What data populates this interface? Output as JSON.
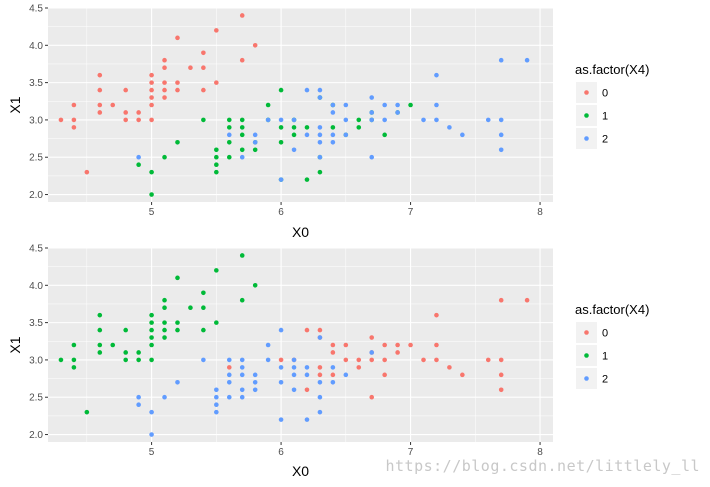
{
  "watermark": "https://blog.csdn.net/littlely_ll",
  "colors": {
    "0": "#F8766D",
    "1": "#00BA38",
    "2": "#619CFF",
    "panel": "#EBEBEB",
    "grid": "#FFFFFF"
  },
  "chart_data": [
    {
      "type": "scatter",
      "xlabel": "X0",
      "ylabel": "X1",
      "xlim": [
        4.2,
        8.1
      ],
      "ylim": [
        1.9,
        4.5
      ],
      "xticks": [
        "5",
        "6",
        "7",
        "8"
      ],
      "yticks": [
        "2.0",
        "2.5",
        "3.0",
        "3.5",
        "4.0",
        "4.5"
      ],
      "grid": true,
      "legend": {
        "title": "as.factor(X4)",
        "position": "right",
        "entries": [
          "0",
          "1",
          "2"
        ]
      },
      "series": [
        {
          "name": "0",
          "color": "#F8766D",
          "points": [
            [
              4.3,
              3.0
            ],
            [
              4.4,
              3.2
            ],
            [
              4.4,
              3.0
            ],
            [
              4.4,
              2.9
            ],
            [
              4.5,
              2.3
            ],
            [
              4.6,
              3.6
            ],
            [
              4.6,
              3.4
            ],
            [
              4.6,
              3.2
            ],
            [
              4.6,
              3.1
            ],
            [
              4.7,
              3.2
            ],
            [
              4.8,
              3.4
            ],
            [
              4.8,
              3.1
            ],
            [
              4.8,
              3.0
            ],
            [
              4.9,
              3.1
            ],
            [
              4.9,
              3.0
            ],
            [
              5.0,
              3.6
            ],
            [
              5.0,
              3.5
            ],
            [
              5.0,
              3.4
            ],
            [
              5.0,
              3.3
            ],
            [
              5.0,
              3.2
            ],
            [
              5.0,
              3.0
            ],
            [
              5.1,
              3.8
            ],
            [
              5.1,
              3.7
            ],
            [
              5.1,
              3.5
            ],
            [
              5.1,
              3.4
            ],
            [
              5.1,
              3.3
            ],
            [
              5.2,
              4.1
            ],
            [
              5.2,
              3.5
            ],
            [
              5.2,
              3.4
            ],
            [
              5.3,
              3.7
            ],
            [
              5.4,
              3.9
            ],
            [
              5.4,
              3.7
            ],
            [
              5.4,
              3.4
            ],
            [
              5.5,
              4.2
            ],
            [
              5.5,
              3.5
            ],
            [
              5.7,
              4.4
            ],
            [
              5.7,
              3.8
            ],
            [
              5.8,
              4.0
            ]
          ]
        },
        {
          "name": "1",
          "color": "#00BA38",
          "points": [
            [
              4.9,
              2.4
            ],
            [
              5.0,
              2.3
            ],
            [
              5.0,
              2.0
            ],
            [
              5.1,
              2.5
            ],
            [
              5.2,
              2.7
            ],
            [
              5.4,
              3.0
            ],
            [
              5.5,
              2.6
            ],
            [
              5.5,
              2.5
            ],
            [
              5.5,
              2.4
            ],
            [
              5.5,
              2.3
            ],
            [
              5.6,
              3.0
            ],
            [
              5.6,
              2.9
            ],
            [
              5.6,
              2.7
            ],
            [
              5.6,
              2.5
            ],
            [
              5.7,
              3.0
            ],
            [
              5.7,
              2.9
            ],
            [
              5.7,
              2.8
            ],
            [
              5.7,
              2.6
            ],
            [
              5.8,
              2.7
            ],
            [
              5.8,
              2.6
            ],
            [
              5.9,
              3.2
            ],
            [
              5.9,
              3.0
            ],
            [
              6.0,
              3.4
            ],
            [
              6.0,
              2.9
            ],
            [
              6.0,
              2.7
            ],
            [
              6.0,
              2.2
            ],
            [
              6.1,
              3.0
            ],
            [
              6.1,
              2.9
            ],
            [
              6.1,
              2.8
            ],
            [
              6.2,
              2.9
            ],
            [
              6.2,
              2.2
            ],
            [
              6.3,
              3.3
            ],
            [
              6.3,
              2.5
            ],
            [
              6.3,
              2.3
            ],
            [
              6.4,
              3.2
            ],
            [
              6.4,
              2.9
            ],
            [
              6.5,
              2.8
            ],
            [
              6.6,
              3.0
            ],
            [
              6.6,
              2.9
            ],
            [
              6.7,
              3.1
            ],
            [
              6.7,
              3.0
            ],
            [
              6.8,
              2.8
            ],
            [
              6.9,
              3.1
            ],
            [
              7.0,
              3.2
            ]
          ]
        },
        {
          "name": "2",
          "color": "#619CFF",
          "points": [
            [
              4.9,
              2.5
            ],
            [
              5.6,
              2.8
            ],
            [
              5.7,
              2.5
            ],
            [
              5.8,
              2.8
            ],
            [
              5.8,
              2.7
            ],
            [
              5.9,
              3.0
            ],
            [
              6.0,
              3.0
            ],
            [
              6.0,
              2.2
            ],
            [
              6.1,
              3.0
            ],
            [
              6.1,
              2.6
            ],
            [
              6.2,
              3.4
            ],
            [
              6.2,
              2.8
            ],
            [
              6.3,
              3.4
            ],
            [
              6.3,
              3.3
            ],
            [
              6.3,
              2.9
            ],
            [
              6.3,
              2.8
            ],
            [
              6.3,
              2.7
            ],
            [
              6.3,
              2.5
            ],
            [
              6.4,
              3.2
            ],
            [
              6.4,
              3.1
            ],
            [
              6.4,
              2.8
            ],
            [
              6.4,
              2.7
            ],
            [
              6.5,
              3.2
            ],
            [
              6.5,
              3.0
            ],
            [
              6.5,
              2.8
            ],
            [
              6.7,
              3.3
            ],
            [
              6.7,
              3.1
            ],
            [
              6.7,
              3.0
            ],
            [
              6.7,
              2.5
            ],
            [
              6.8,
              3.2
            ],
            [
              6.8,
              3.0
            ],
            [
              6.9,
              3.2
            ],
            [
              6.9,
              3.1
            ],
            [
              7.1,
              3.0
            ],
            [
              7.2,
              3.6
            ],
            [
              7.2,
              3.2
            ],
            [
              7.2,
              3.0
            ],
            [
              7.3,
              2.9
            ],
            [
              7.4,
              2.8
            ],
            [
              7.6,
              3.0
            ],
            [
              7.7,
              3.8
            ],
            [
              7.7,
              3.0
            ],
            [
              7.7,
              2.8
            ],
            [
              7.7,
              2.6
            ],
            [
              7.9,
              3.8
            ]
          ]
        }
      ]
    },
    {
      "type": "scatter",
      "xlabel": "X0",
      "ylabel": "X1",
      "xlim": [
        4.2,
        8.1
      ],
      "ylim": [
        1.9,
        4.5
      ],
      "xticks": [
        "5",
        "6",
        "7",
        "8"
      ],
      "yticks": [
        "2.0",
        "2.5",
        "3.0",
        "3.5",
        "4.0",
        "4.5"
      ],
      "grid": true,
      "legend": {
        "title": "as.factor(X4)",
        "position": "right",
        "entries": [
          "0",
          "1",
          "2"
        ]
      },
      "series": [
        {
          "name": "0",
          "color": "#F8766D",
          "points": [
            [
              5.6,
              2.9
            ],
            [
              6.0,
              3.0
            ],
            [
              6.1,
              3.0
            ],
            [
              6.2,
              3.4
            ],
            [
              6.3,
              3.4
            ],
            [
              6.3,
              3.3
            ],
            [
              6.3,
              2.9
            ],
            [
              6.3,
              2.8
            ],
            [
              6.4,
              3.2
            ],
            [
              6.4,
              3.1
            ],
            [
              6.4,
              2.8
            ],
            [
              6.5,
              3.2
            ],
            [
              6.5,
              3.0
            ],
            [
              6.6,
              3.0
            ],
            [
              6.6,
              2.9
            ],
            [
              6.7,
              3.3
            ],
            [
              6.7,
              3.1
            ],
            [
              6.7,
              3.0
            ],
            [
              6.7,
              2.5
            ],
            [
              6.8,
              3.2
            ],
            [
              6.8,
              3.0
            ],
            [
              6.8,
              2.8
            ],
            [
              6.9,
              3.2
            ],
            [
              6.9,
              3.1
            ],
            [
              7.0,
              3.2
            ],
            [
              7.1,
              3.0
            ],
            [
              7.2,
              3.6
            ],
            [
              7.2,
              3.2
            ],
            [
              7.2,
              3.0
            ],
            [
              7.3,
              2.9
            ],
            [
              7.4,
              2.8
            ],
            [
              7.6,
              3.0
            ],
            [
              7.7,
              3.8
            ],
            [
              7.7,
              3.0
            ],
            [
              7.7,
              2.8
            ],
            [
              7.7,
              2.6
            ],
            [
              7.9,
              3.8
            ],
            [
              6.2,
              2.6
            ]
          ]
        },
        {
          "name": "1",
          "color": "#00BA38",
          "points": [
            [
              4.3,
              3.0
            ],
            [
              4.4,
              3.2
            ],
            [
              4.4,
              3.0
            ],
            [
              4.4,
              2.9
            ],
            [
              4.5,
              2.3
            ],
            [
              4.6,
              3.6
            ],
            [
              4.6,
              3.4
            ],
            [
              4.6,
              3.2
            ],
            [
              4.6,
              3.1
            ],
            [
              4.7,
              3.2
            ],
            [
              4.8,
              3.4
            ],
            [
              4.8,
              3.1
            ],
            [
              4.8,
              3.0
            ],
            [
              4.9,
              3.1
            ],
            [
              4.9,
              3.0
            ],
            [
              5.0,
              3.6
            ],
            [
              5.0,
              3.5
            ],
            [
              5.0,
              3.4
            ],
            [
              5.0,
              3.3
            ],
            [
              5.0,
              3.2
            ],
            [
              5.0,
              3.0
            ],
            [
              5.1,
              3.8
            ],
            [
              5.1,
              3.7
            ],
            [
              5.1,
              3.5
            ],
            [
              5.1,
              3.4
            ],
            [
              5.1,
              3.3
            ],
            [
              5.2,
              4.1
            ],
            [
              5.2,
              3.5
            ],
            [
              5.2,
              3.4
            ],
            [
              5.3,
              3.7
            ],
            [
              5.4,
              3.9
            ],
            [
              5.4,
              3.7
            ],
            [
              5.4,
              3.4
            ],
            [
              5.5,
              4.2
            ],
            [
              5.5,
              3.5
            ],
            [
              5.7,
              4.4
            ],
            [
              5.7,
              3.8
            ],
            [
              5.8,
              4.0
            ]
          ]
        },
        {
          "name": "2",
          "color": "#619CFF",
          "points": [
            [
              4.9,
              2.5
            ],
            [
              4.9,
              2.4
            ],
            [
              5.0,
              2.3
            ],
            [
              5.0,
              2.0
            ],
            [
              5.1,
              2.5
            ],
            [
              5.2,
              2.7
            ],
            [
              5.4,
              3.0
            ],
            [
              5.5,
              2.6
            ],
            [
              5.5,
              2.5
            ],
            [
              5.5,
              2.4
            ],
            [
              5.5,
              2.3
            ],
            [
              5.6,
              3.0
            ],
            [
              5.6,
              2.8
            ],
            [
              5.6,
              2.7
            ],
            [
              5.6,
              2.5
            ],
            [
              5.7,
              3.0
            ],
            [
              5.7,
              2.9
            ],
            [
              5.7,
              2.8
            ],
            [
              5.7,
              2.6
            ],
            [
              5.7,
              2.5
            ],
            [
              5.8,
              2.8
            ],
            [
              5.8,
              2.7
            ],
            [
              5.8,
              2.6
            ],
            [
              5.9,
              3.2
            ],
            [
              5.9,
              3.0
            ],
            [
              6.0,
              3.4
            ],
            [
              6.0,
              2.9
            ],
            [
              6.0,
              2.7
            ],
            [
              6.0,
              2.2
            ],
            [
              6.1,
              2.9
            ],
            [
              6.1,
              2.8
            ],
            [
              6.1,
              2.6
            ],
            [
              6.2,
              2.9
            ],
            [
              6.2,
              2.8
            ],
            [
              6.2,
              2.2
            ],
            [
              6.3,
              2.7
            ],
            [
              6.3,
              2.5
            ],
            [
              6.3,
              2.3
            ],
            [
              6.4,
              2.9
            ],
            [
              6.4,
              2.7
            ],
            [
              6.5,
              2.8
            ],
            [
              6.7,
              3.1
            ],
            [
              6.1,
              3.0
            ],
            [
              6.3,
              3.3
            ]
          ]
        }
      ]
    }
  ]
}
